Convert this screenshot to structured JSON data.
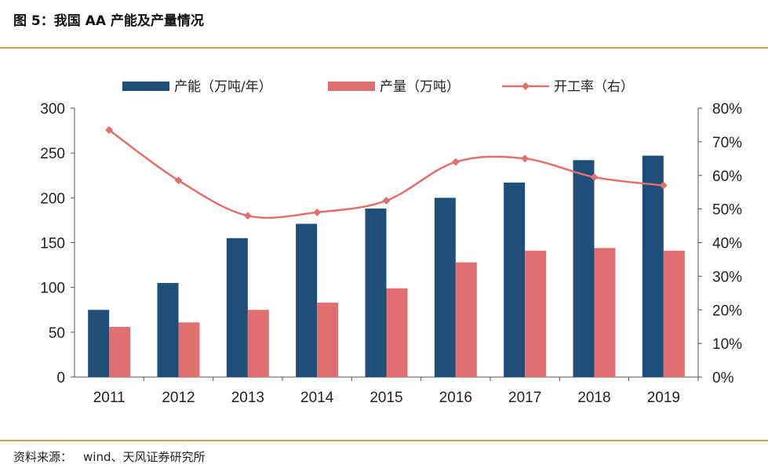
{
  "header": {
    "title": "图 5：我国 AA 产能及产量情况"
  },
  "footer": {
    "source_label": "资料来源：",
    "source_value": "wind、天风证券研究所"
  },
  "colors": {
    "capacity": "#1f4e79",
    "output": "#e07070",
    "rate": "#e07070",
    "rule": "#c9a25a"
  },
  "chart_data": {
    "type": "bar",
    "categories": [
      "2011",
      "2012",
      "2013",
      "2014",
      "2015",
      "2016",
      "2017",
      "2018",
      "2019"
    ],
    "series": [
      {
        "name": "产能（万吨/年）",
        "type": "bar",
        "axis": "left",
        "values": [
          75,
          105,
          155,
          171,
          188,
          200,
          217,
          242,
          247
        ]
      },
      {
        "name": "产量（万吨）",
        "type": "bar",
        "axis": "left",
        "values": [
          56,
          61,
          75,
          83,
          99,
          128,
          141,
          144,
          141
        ]
      },
      {
        "name": "开工率（右）",
        "type": "line",
        "axis": "right",
        "values": [
          73.5,
          58.5,
          48,
          49,
          52.5,
          64,
          65,
          59.5,
          57
        ]
      }
    ],
    "y_left": {
      "min": 0,
      "max": 300,
      "ticks": [
        "0",
        "50",
        "100",
        "150",
        "200",
        "250",
        "300"
      ]
    },
    "y_right": {
      "min": 0,
      "max": 80,
      "ticks": [
        "0%",
        "10%",
        "20%",
        "30%",
        "40%",
        "50%",
        "60%",
        "70%",
        "80%"
      ]
    },
    "legend_position": "top",
    "grid": false
  }
}
